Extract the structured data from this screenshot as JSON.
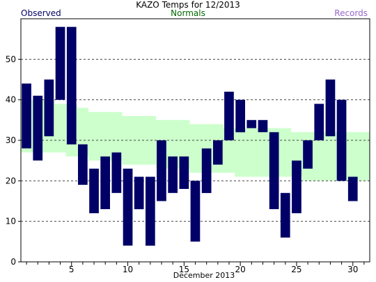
{
  "chart_data": {
    "type": "bar",
    "title": "KAZO Temps for  12/2013",
    "xlabel": "December 2013",
    "ylabel": "",
    "ylim": [
      0,
      60
    ],
    "xlim": [
      0.5,
      31.5
    ],
    "yticks": [
      0,
      10,
      20,
      30,
      40,
      50
    ],
    "xticks": [
      5,
      10,
      15,
      20,
      25,
      30
    ],
    "grid": "horizontal dashed",
    "legend": {
      "placement": "top",
      "entries": [
        {
          "label": "Observed",
          "color": "#000066"
        },
        {
          "label": "Normals",
          "color": "#006600"
        },
        {
          "label": "Records",
          "color": "#9966cc"
        }
      ]
    },
    "colors": {
      "observed_bar": "#000066",
      "normals_band": "#ccffcc",
      "grid": "#444444"
    },
    "normals": {
      "days": [
        1,
        2,
        3,
        4,
        5,
        6,
        7,
        8,
        9,
        10,
        11,
        12,
        13,
        14,
        15,
        16,
        17,
        18,
        19,
        20,
        21,
        22,
        23,
        24,
        25,
        26,
        27,
        28,
        29,
        30,
        31
      ],
      "high": [
        40,
        40,
        40,
        39,
        39,
        38,
        37,
        37,
        37,
        36,
        36,
        36,
        35,
        35,
        35,
        34,
        34,
        34,
        33,
        33,
        33,
        33,
        33,
        33,
        32,
        32,
        32,
        32,
        32,
        32,
        32
      ],
      "low": [
        27,
        27,
        27,
        27,
        26,
        26,
        25,
        25,
        25,
        24,
        24,
        24,
        23,
        23,
        23,
        22,
        22,
        22,
        22,
        21,
        21,
        21,
        21,
        21,
        21,
        20,
        20,
        20,
        20,
        20,
        20
      ]
    },
    "observed": {
      "days": [
        1,
        2,
        3,
        4,
        5,
        6,
        7,
        8,
        9,
        10,
        11,
        12,
        13,
        14,
        15,
        16,
        17,
        18,
        19,
        20,
        21,
        22,
        23,
        24,
        25,
        26,
        27,
        28,
        29,
        30
      ],
      "high": [
        44,
        41,
        45,
        58,
        58,
        29,
        23,
        26,
        27,
        23,
        21,
        21,
        30,
        26,
        26,
        20,
        28,
        30,
        42,
        40,
        35,
        35,
        32,
        17,
        25,
        30,
        39,
        45,
        40,
        21
      ],
      "low": [
        28,
        25,
        31,
        40,
        29,
        19,
        12,
        13,
        17,
        4,
        13,
        4,
        15,
        17,
        18,
        5,
        17,
        24,
        30,
        32,
        33,
        32,
        13,
        6,
        12,
        23,
        30,
        31,
        20,
        15
      ]
    }
  }
}
